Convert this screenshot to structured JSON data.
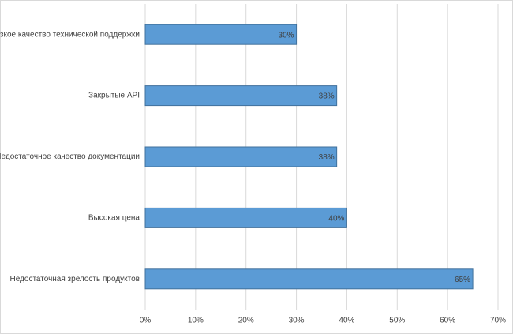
{
  "chart_data": {
    "type": "hbar",
    "categories": [
      "Низкое качество технической поддержки",
      "Закрытые API",
      "Недостаточное качество документации",
      "Высокая цена",
      "Недостаточная зрелость продуктов"
    ],
    "values": [
      30,
      38,
      38,
      40,
      65
    ],
    "value_labels": [
      "30%",
      "38%",
      "38%",
      "40%",
      "65%"
    ],
    "color": "#5b9bd5",
    "xlim": [
      0,
      70
    ],
    "xticks": [
      {
        "value": 0,
        "label": "0%"
      },
      {
        "value": 10,
        "label": "10%"
      },
      {
        "value": 20,
        "label": "20%"
      },
      {
        "value": 30,
        "label": "30%"
      },
      {
        "value": 40,
        "label": "40%"
      },
      {
        "value": 50,
        "label": "50%"
      },
      {
        "value": 60,
        "label": "60%"
      },
      {
        "value": 70,
        "label": "70%"
      }
    ],
    "grid": true
  }
}
